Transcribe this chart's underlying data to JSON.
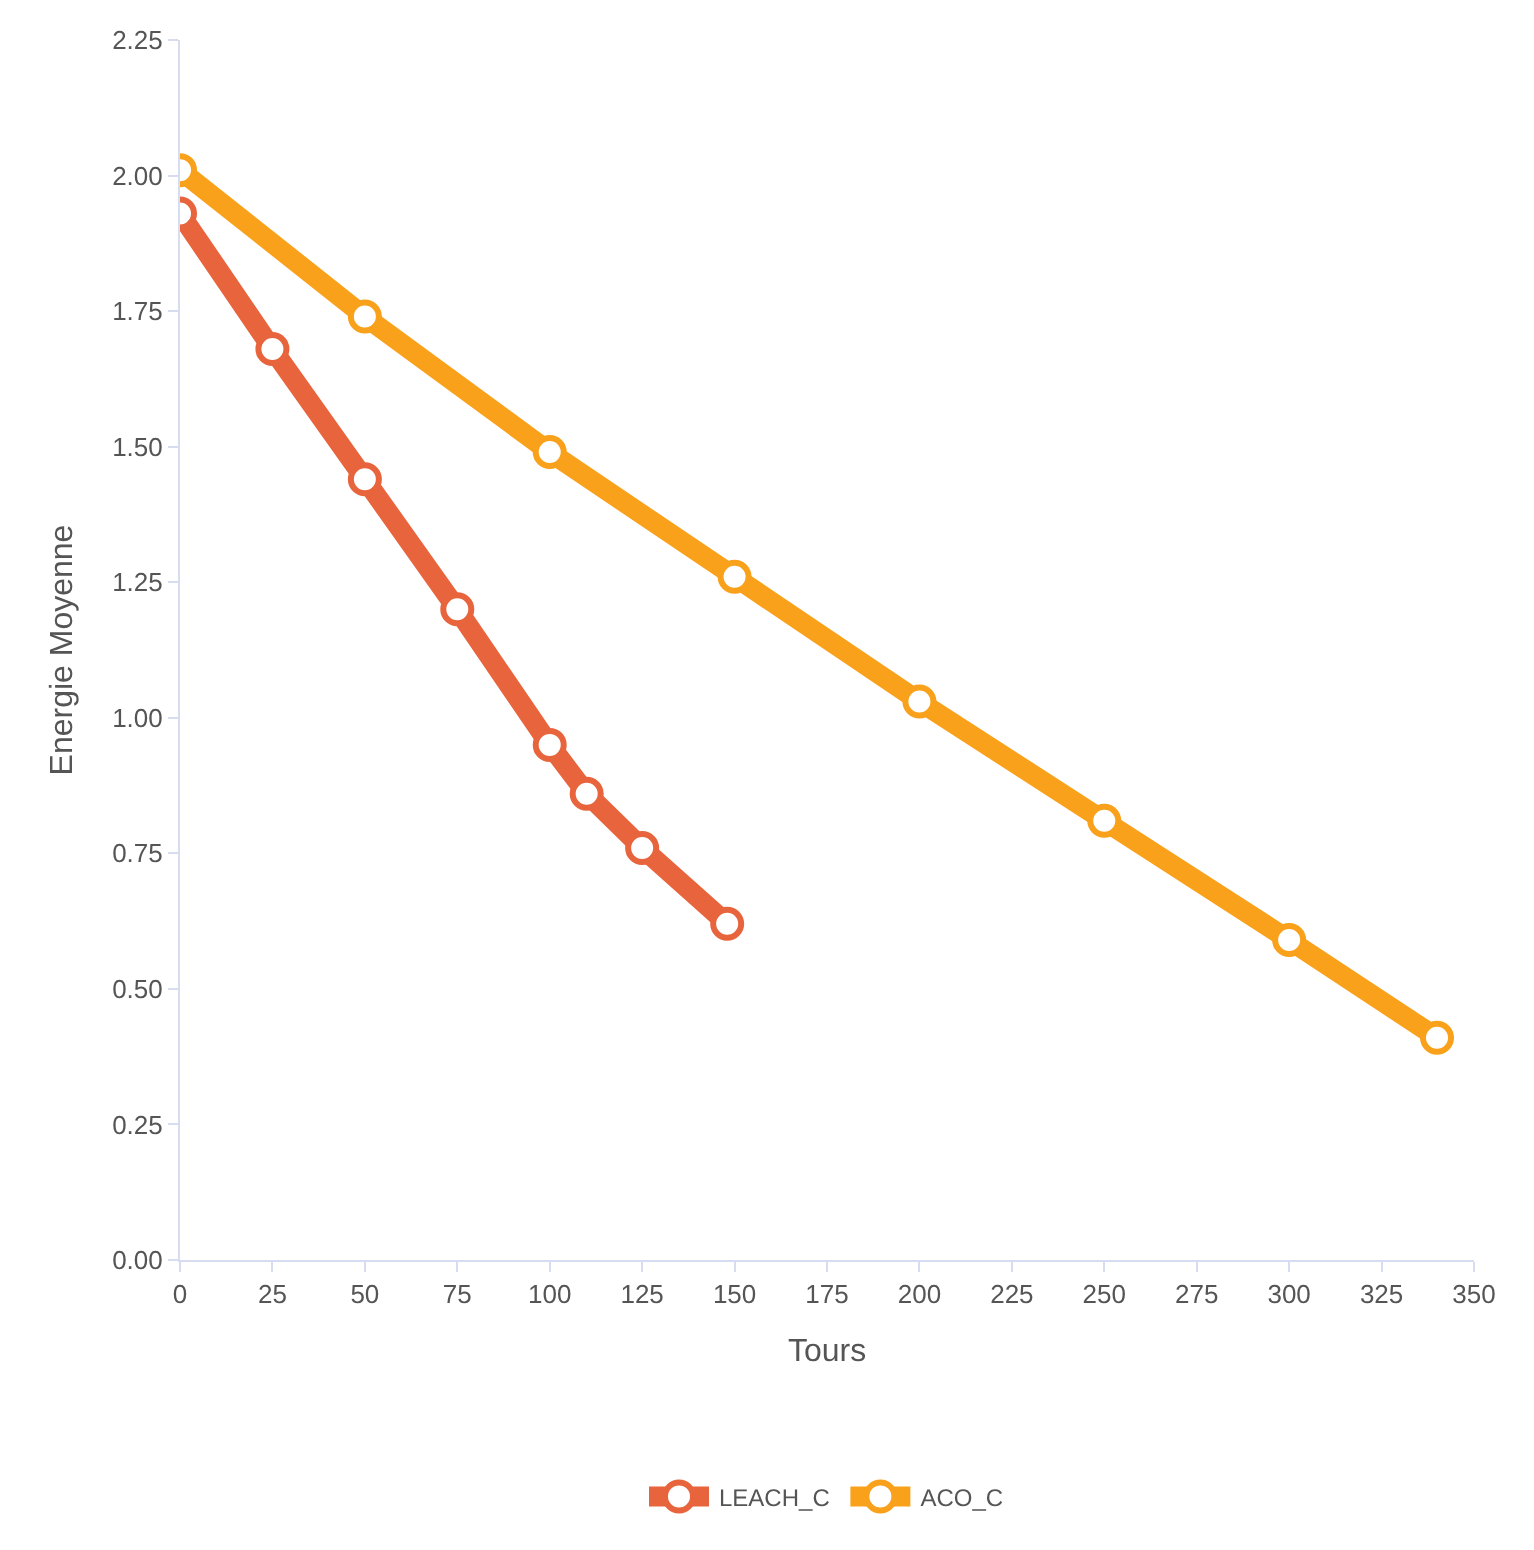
{
  "chart_data": {
    "type": "line",
    "xlabel": "Tours",
    "ylabel": "Energie Moyenne",
    "xlim": [
      0,
      350
    ],
    "xticks": [
      0,
      25,
      50,
      75,
      100,
      125,
      150,
      175,
      200,
      225,
      250,
      275,
      300,
      325,
      350
    ],
    "ylim": [
      0,
      2.25
    ],
    "yticks": [
      {
        "value": 0,
        "label": "0.00"
      },
      {
        "value": 0.25,
        "label": "0.25"
      },
      {
        "value": 0.5,
        "label": "0.50"
      },
      {
        "value": 0.75,
        "label": "0.75"
      },
      {
        "value": 1,
        "label": "1.00"
      },
      {
        "value": 1.25,
        "label": "1.25"
      },
      {
        "value": 1.5,
        "label": "1.50"
      },
      {
        "value": 1.75,
        "label": "1.75"
      },
      {
        "value": 2,
        "label": "2.00"
      },
      {
        "value": 2.25,
        "label": "2.25"
      }
    ],
    "grid": false,
    "legend": "bottom",
    "marker": "circle",
    "line_style": "solid",
    "series": [
      {
        "name": "LEACH_C",
        "color": "#e8643c",
        "x": [
          0,
          25,
          50,
          75,
          100,
          110,
          125,
          148
        ],
        "values": [
          1.93,
          1.68,
          1.44,
          1.2,
          0.95,
          0.86,
          0.76,
          0.62
        ]
      },
      {
        "name": "ACO_C",
        "color": "#f9a11b",
        "x": [
          0,
          50,
          100,
          150,
          200,
          250,
          300,
          340
        ],
        "values": [
          2.01,
          1.74,
          1.49,
          1.26,
          1.03,
          0.81,
          0.59,
          0.41
        ]
      }
    ]
  }
}
